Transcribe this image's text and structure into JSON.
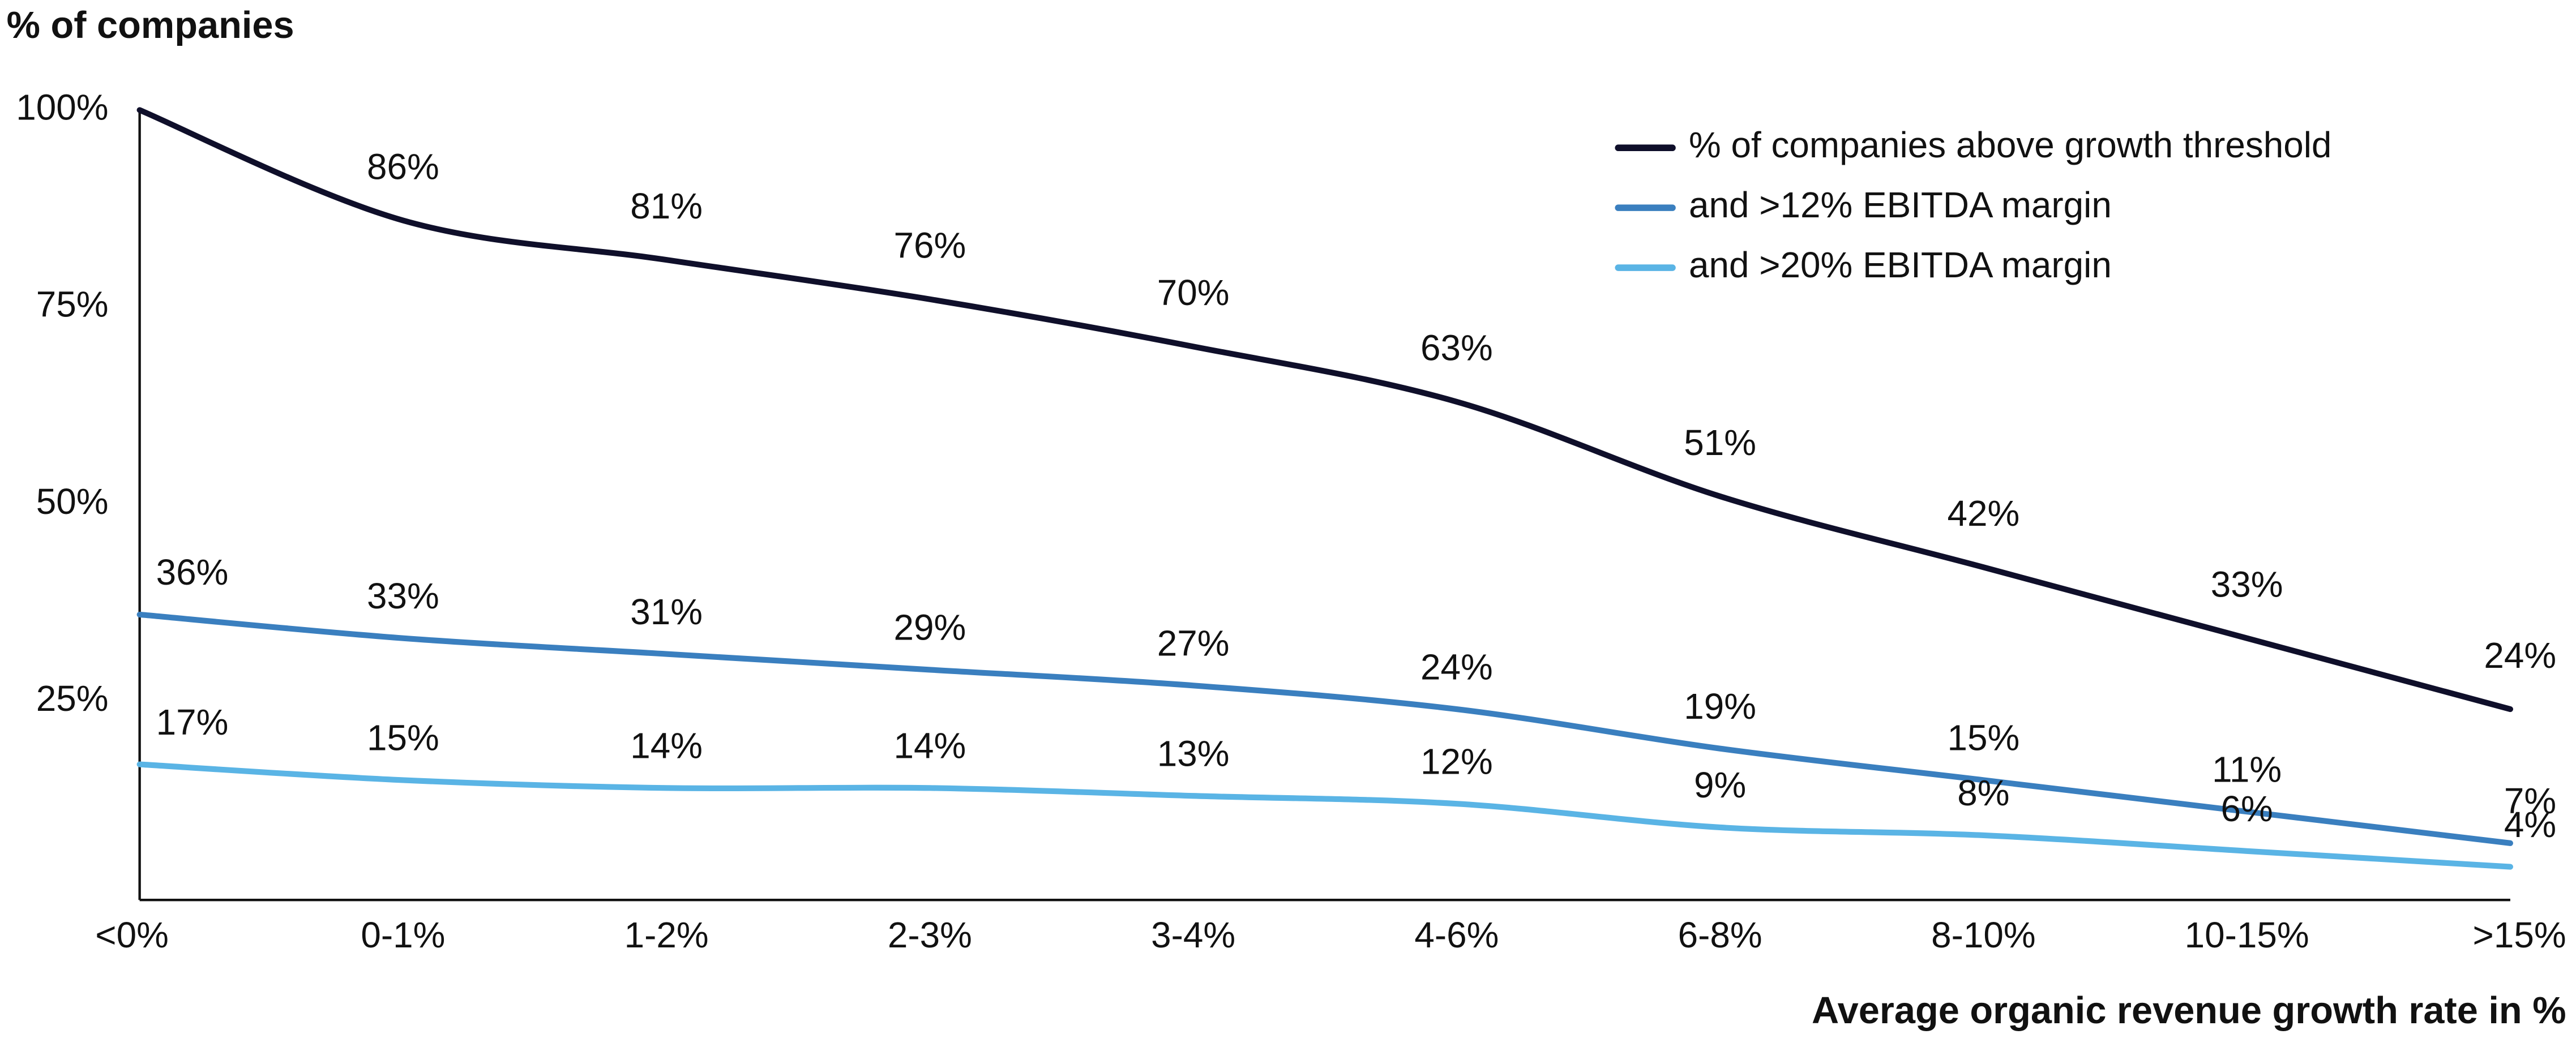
{
  "chart_data": {
    "type": "line",
    "y_label": "% of companies",
    "x_label": "Average organic revenue growth rate in %",
    "categories": [
      "<0%",
      "0-1%",
      "1-2%",
      "2-3%",
      "3-4%",
      "4-6%",
      "6-8%",
      "8-10%",
      "10-15%",
      ">15%"
    ],
    "series": [
      {
        "name": "% of companies above growth threshold",
        "color": "#0f0f2a",
        "values": [
          100,
          86,
          81,
          76,
          70,
          63,
          51,
          42,
          33,
          24
        ],
        "value_labels": [
          null,
          "86%",
          "81%",
          "76%",
          "70%",
          "63%",
          "51%",
          "42%",
          "33%",
          "24%"
        ]
      },
      {
        "name": "and >12% EBITDA margin",
        "color": "#3a7fbf",
        "values": [
          36,
          33,
          31,
          29,
          27,
          24,
          19,
          15,
          11,
          7
        ],
        "value_labels": [
          "36%",
          "33%",
          "31%",
          "29%",
          "27%",
          "24%",
          "19%",
          "15%",
          "11%",
          "7%"
        ]
      },
      {
        "name": "and >20% EBITDA margin",
        "color": "#5ab4e5",
        "values": [
          17,
          15,
          14,
          14,
          13,
          12,
          9,
          8,
          6,
          4
        ],
        "value_labels": [
          "17%",
          "15%",
          "14%",
          "14%",
          "13%",
          "12%",
          "9%",
          "8%",
          "6%",
          "4%"
        ]
      }
    ],
    "ylim": [
      0,
      100
    ],
    "yticks": [
      {
        "value": 25,
        "label": "25%"
      },
      {
        "value": 50,
        "label": "50%"
      },
      {
        "value": 75,
        "label": "75%"
      },
      {
        "value": 100,
        "label": "100%"
      }
    ],
    "legend": "upper right",
    "grid": false
  }
}
